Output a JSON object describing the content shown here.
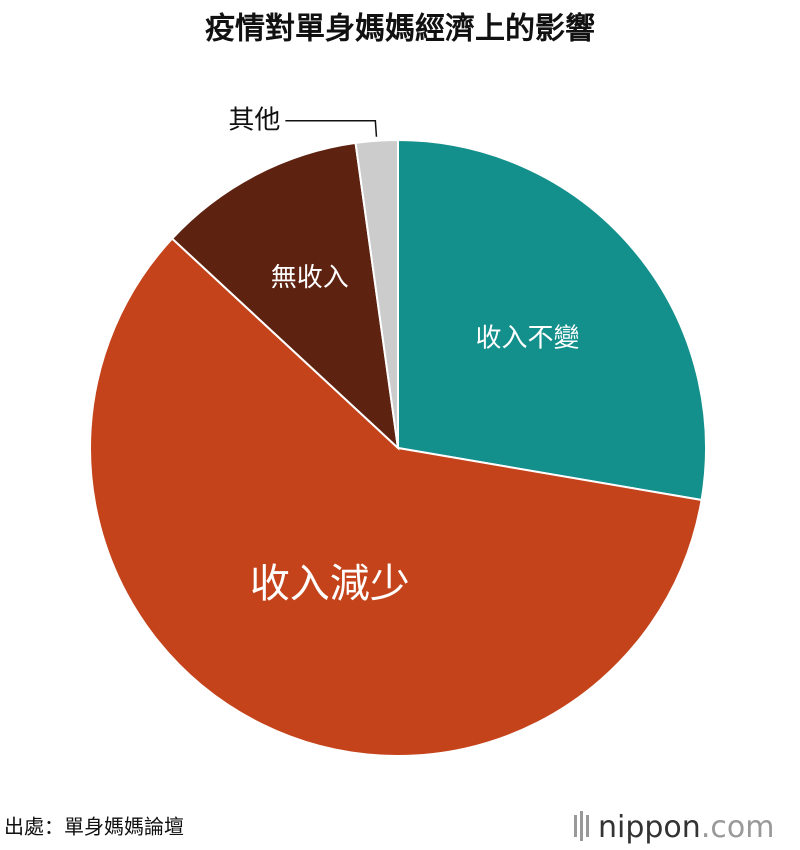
{
  "chart_data": {
    "type": "pie",
    "title": "疫情對單身媽媽經濟上的影響",
    "categories": [
      "收入不變",
      "收入減少",
      "無收入",
      "其他"
    ],
    "values": [
      27.7,
      59.2,
      10.9,
      2.2
    ],
    "colors": [
      "#138f8c",
      "#c4431a",
      "#5e2210",
      "#cccccc"
    ],
    "source": "出處：單身媽媽論壇",
    "logo": {
      "name": "nippon",
      "suffix": ".com"
    }
  }
}
